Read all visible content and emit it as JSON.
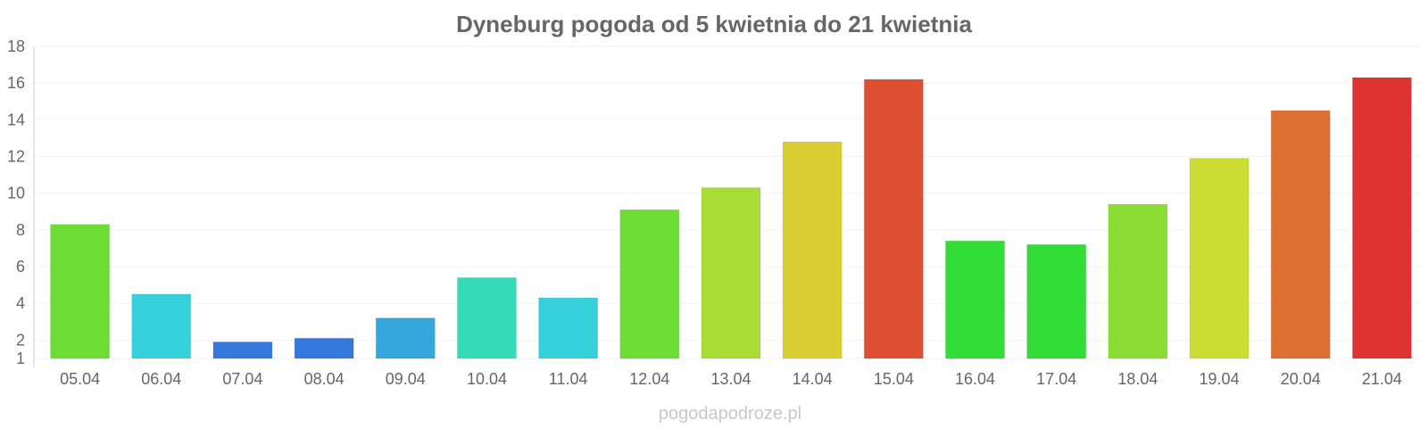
{
  "chart_data": {
    "type": "bar",
    "title": "Dyneburg pogoda od 5 kwietnia do 21 kwietnia",
    "xlabel": "",
    "ylabel": "",
    "ylim": [
      1,
      18
    ],
    "yticks": [
      1,
      2,
      4,
      6,
      8,
      10,
      12,
      14,
      16,
      18
    ],
    "grid": true,
    "categories": [
      "05.04",
      "06.04",
      "07.04",
      "08.04",
      "09.04",
      "10.04",
      "11.04",
      "12.04",
      "13.04",
      "14.04",
      "15.04",
      "16.04",
      "17.04",
      "18.04",
      "19.04",
      "20.04",
      "21.04"
    ],
    "values": [
      8.3,
      4.5,
      1.9,
      2.1,
      3.2,
      5.4,
      4.3,
      9.1,
      10.3,
      12.8,
      16.2,
      7.4,
      7.2,
      9.4,
      11.9,
      14.5,
      16.3
    ],
    "colors": [
      "#6ddd35",
      "#36cfdc",
      "#3478dd",
      "#3478dd",
      "#35a7dc",
      "#35dcb8",
      "#36cfdc",
      "#6ddd35",
      "#a7dd35",
      "#dbcc33",
      "#dd5033",
      "#33dd38",
      "#33dd38",
      "#8bdd35",
      "#ccdd33",
      "#dd6f33",
      "#dd3333"
    ]
  },
  "watermark": "pogodapodroze.pl"
}
